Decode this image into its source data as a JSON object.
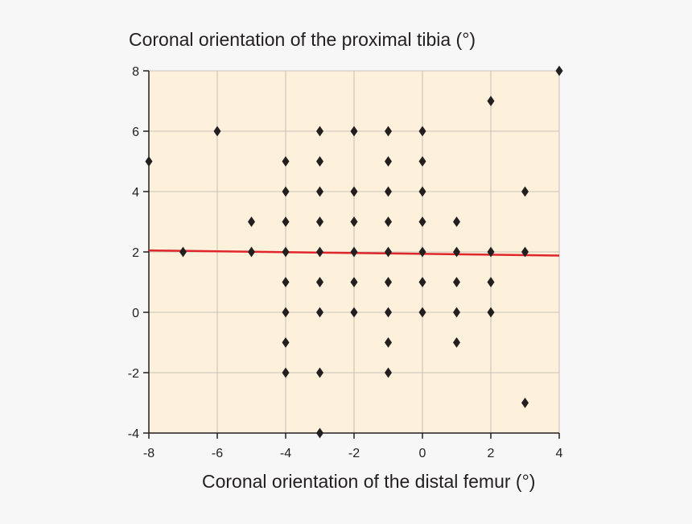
{
  "chart_data": {
    "type": "scatter",
    "title": "",
    "ylabel": "Coronal orientation of the proximal tibia (°)",
    "xlabel": "Coronal orientation of the distal femur (°)",
    "xlim": [
      -8,
      4
    ],
    "ylim": [
      -4,
      8
    ],
    "xticks": [
      -8,
      -6,
      -4,
      -2,
      0,
      2,
      4
    ],
    "yticks": [
      -4,
      -2,
      0,
      2,
      4,
      6,
      8
    ],
    "grid": true,
    "plot_background": "#fdf1dc",
    "marker_color": "#231f20",
    "points": [
      [
        -8,
        5
      ],
      [
        -7,
        2
      ],
      [
        -6,
        6
      ],
      [
        -5,
        3
      ],
      [
        -5,
        2
      ],
      [
        -4,
        5
      ],
      [
        -4,
        4
      ],
      [
        -4,
        3
      ],
      [
        -4,
        2
      ],
      [
        -4,
        1
      ],
      [
        -4,
        0
      ],
      [
        -4,
        -1
      ],
      [
        -4,
        -2
      ],
      [
        -3,
        6
      ],
      [
        -3,
        5
      ],
      [
        -3,
        4
      ],
      [
        -3,
        3
      ],
      [
        -3,
        2
      ],
      [
        -3,
        1
      ],
      [
        -3,
        0
      ],
      [
        -3,
        -2
      ],
      [
        -3,
        -4
      ],
      [
        -2,
        6
      ],
      [
        -2,
        4
      ],
      [
        -2,
        3
      ],
      [
        -2,
        2
      ],
      [
        -2,
        1
      ],
      [
        -2,
        0
      ],
      [
        -1,
        6
      ],
      [
        -1,
        5
      ],
      [
        -1,
        4
      ],
      [
        -1,
        3
      ],
      [
        -1,
        2
      ],
      [
        -1,
        1
      ],
      [
        -1,
        0
      ],
      [
        -1,
        -1
      ],
      [
        -1,
        -2
      ],
      [
        0,
        6
      ],
      [
        0,
        5
      ],
      [
        0,
        4
      ],
      [
        0,
        3
      ],
      [
        0,
        2
      ],
      [
        0,
        1
      ],
      [
        0,
        0
      ],
      [
        1,
        3
      ],
      [
        1,
        2
      ],
      [
        1,
        1
      ],
      [
        1,
        0
      ],
      [
        1,
        -1
      ],
      [
        2,
        7
      ],
      [
        2,
        2
      ],
      [
        2,
        1
      ],
      [
        2,
        0
      ],
      [
        3,
        4
      ],
      [
        3,
        2
      ],
      [
        3,
        -3
      ],
      [
        4,
        8
      ]
    ],
    "trendline": {
      "color": "#e0262b",
      "x": [
        -8,
        4
      ],
      "y": [
        2.05,
        1.88
      ]
    }
  }
}
